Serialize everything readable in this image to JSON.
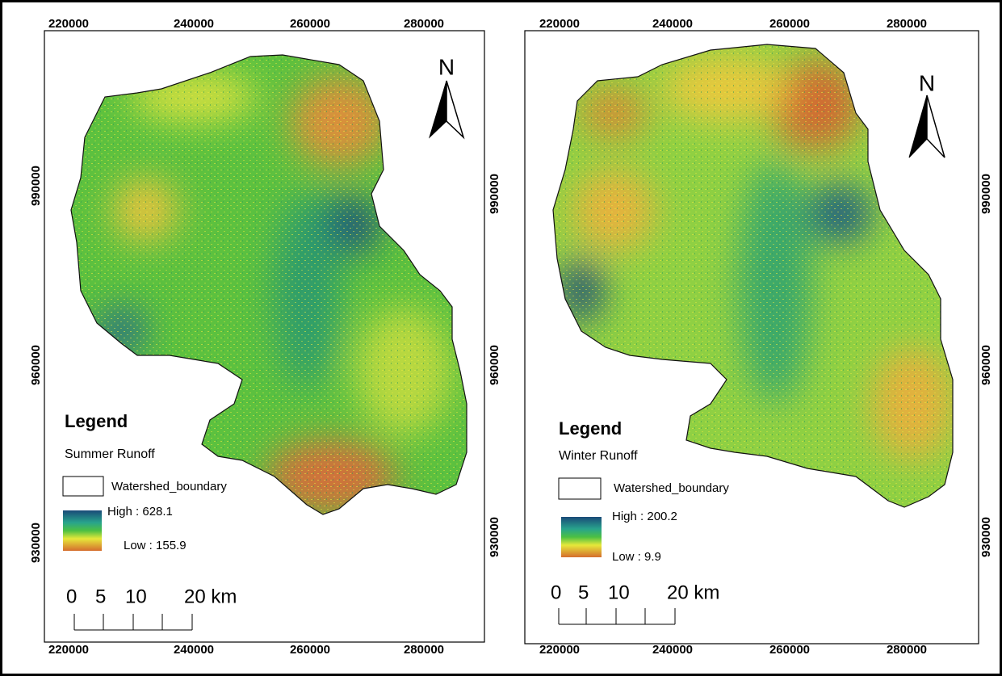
{
  "panels": [
    {
      "x_ticks": [
        "220000",
        "240000",
        "260000",
        "280000"
      ],
      "y_ticks": [
        "990000",
        "960000",
        "930000"
      ],
      "north": "N",
      "legend": {
        "title": "Legend",
        "layer": "Summer Runoff",
        "boundary": "Watershed_boundary",
        "high": "High : 628.1",
        "low": "Low : 155.9"
      },
      "scale": [
        "0",
        "5",
        "10",
        "20 km"
      ]
    },
    {
      "x_ticks": [
        "220000",
        "240000",
        "260000",
        "280000"
      ],
      "y_ticks": [
        "990000",
        "960000",
        "930000"
      ],
      "north": "N",
      "legend": {
        "title": "Legend",
        "layer": "Winter Runoff",
        "boundary": "Watershed_boundary",
        "high": "High : 200.2",
        "low": "Low : 9.9"
      },
      "scale": [
        "0",
        "5",
        "10",
        "20 km"
      ]
    }
  ]
}
